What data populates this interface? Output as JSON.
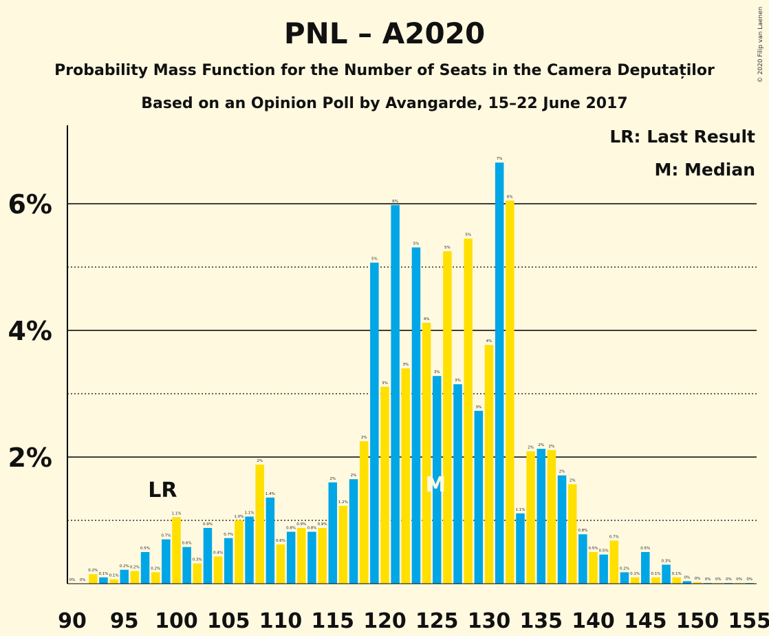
{
  "title": "PNL – A2020",
  "subtitle1": "Probability Mass Function for the Number of Seats in the Camera Deputaților",
  "subtitle2": "Based on an Opinion Poll by Avangarde, 15–22 June 2017",
  "copyright": "© 2020 Filip van Laenen",
  "legend": {
    "lr": "LR: Last Result",
    "m": "M: Median"
  },
  "markers": {
    "lr_label": "LR",
    "lr_seat": 99,
    "median_label": "M",
    "median_seat": 125
  },
  "colors": {
    "blue": "#00A6E6",
    "yellow": "#FFE000",
    "background": "#FFF9E0"
  },
  "chart_data": {
    "type": "bar",
    "xlabel": "",
    "ylabel": "",
    "xlim": [
      90,
      155
    ],
    "x_ticks": [
      90,
      95,
      100,
      105,
      110,
      115,
      120,
      125,
      130,
      135,
      140,
      145,
      150,
      155
    ],
    "y_ticks": [
      "2%",
      "4%",
      "6%"
    ],
    "ylim": [
      0,
      7.2
    ],
    "gridlines_solid": [
      2,
      4,
      6
    ],
    "gridlines_dotted": [
      1,
      3,
      5
    ],
    "seats": [
      90,
      91,
      92,
      93,
      94,
      95,
      96,
      97,
      98,
      99,
      100,
      101,
      102,
      103,
      104,
      105,
      106,
      107,
      108,
      109,
      110,
      111,
      112,
      113,
      114,
      115,
      116,
      117,
      118,
      119,
      120,
      121,
      122,
      123,
      124,
      125,
      126,
      127,
      128,
      129,
      130,
      131,
      132,
      133,
      134,
      135,
      136,
      137,
      138,
      139,
      140,
      141,
      142,
      143,
      144,
      145,
      146,
      147,
      148,
      149,
      150,
      151,
      152,
      153,
      154,
      155
    ],
    "values": [
      0,
      0,
      0.15,
      0.1,
      0.07,
      0.22,
      0.2,
      0.5,
      0.18,
      0.7,
      1.05,
      0.58,
      0.32,
      0.88,
      0.43,
      0.72,
      1.0,
      1.06,
      1.88,
      1.36,
      0.62,
      0.82,
      0.88,
      0.82,
      0.88,
      1.6,
      1.23,
      1.65,
      2.25,
      5.07,
      3.11,
      5.98,
      3.4,
      5.31,
      4.12,
      3.28,
      5.25,
      3.15,
      5.45,
      2.73,
      3.77,
      6.65,
      6.05,
      1.11,
      2.09,
      2.13,
      2.11,
      1.71,
      1.57,
      0.78,
      0.5,
      0.46,
      0.68,
      0.18,
      0.1,
      0.5,
      0.1,
      0.3,
      0.1,
      0.04,
      0.02,
      0.01,
      0.01,
      0.01,
      0.01,
      0.01
    ],
    "labels": [
      "0%",
      "0%",
      "0.2%",
      "0.1%",
      "0.1%",
      "0.2%",
      "0.2%",
      "0.5%",
      "0.2%",
      "0.7%",
      "1.1%",
      "0.6%",
      "0.3%",
      "0.9%",
      "0.4%",
      "0.7%",
      "1.0%",
      "1.1%",
      "2%",
      "1.4%",
      "0.6%",
      "0.8%",
      "0.9%",
      "0.8%",
      "0.9%",
      "2%",
      "1.2%",
      "2%",
      "2%",
      "5%",
      "3%",
      "6%",
      "3%",
      "5%",
      "4%",
      "3%",
      "5%",
      "3%",
      "5%",
      "3%",
      "4%",
      "7%",
      "6%",
      "1.1%",
      "2%",
      "2%",
      "2%",
      "2%",
      "2%",
      "0.8%",
      "0.5%",
      "0.5%",
      "0.7%",
      "0.2%",
      "0.1%",
      "0.5%",
      "0.1%",
      "0.3%",
      "0.1%",
      "0%",
      "0%",
      "0%",
      "0%",
      "0%",
      "0%",
      "0%"
    ]
  }
}
